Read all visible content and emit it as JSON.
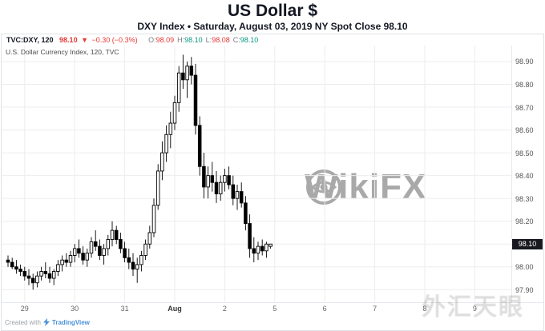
{
  "header": {
    "title": "US Dollar $",
    "subtitle": "DXY Index • Saturday, August 03, 2019 NY Spot Close 98.10"
  },
  "toolbar": {
    "symbol": "TVC:DXY, 120",
    "price": "98.10",
    "arrow": "▼",
    "change": "−0.30 (−0.3%)",
    "change_color": "#e53935",
    "ohlc": [
      {
        "label": "O:",
        "value": "98.09",
        "color": "#e53935"
      },
      {
        "label": "H:",
        "value": "98.10",
        "color": "#089981"
      },
      {
        "label": "L:",
        "value": "98.08",
        "color": "#e53935"
      },
      {
        "label": "C:",
        "value": "98.10",
        "color": "#089981"
      }
    ]
  },
  "legend": {
    "text": "U.S. Dollar Currency Index, 120, TVC"
  },
  "watermark": {
    "text": "WikiFX",
    "secondary": "外汇天眼"
  },
  "footer": {
    "created_with": "Created with",
    "brand": "TradingView"
  },
  "chart_data": {
    "type": "candlestick",
    "title": "U.S. Dollar Currency Index",
    "symbol": "TVC:DXY",
    "interval_minutes": 120,
    "last_price": 98.1,
    "ylim": [
      97.845,
      98.97
    ],
    "grid": true,
    "grid_color": "#ededf0",
    "axis_text_color": "#555555",
    "up_color": "#ffffff",
    "down_color": "#000000",
    "border_color": "#000000",
    "x0": 8,
    "step": 5.2,
    "y_ticks": [
      "98.90",
      "98.80",
      "98.70",
      "98.60",
      "98.50",
      "98.40",
      "98.30",
      "98.20",
      "98.10",
      "98.00",
      "97.90"
    ],
    "x_ticks": [
      {
        "label": "29",
        "bar": 4,
        "bold": false
      },
      {
        "label": "30",
        "bar": 16,
        "bold": false
      },
      {
        "label": "31",
        "bar": 28,
        "bold": false
      },
      {
        "label": "Aug",
        "bar": 40,
        "bold": true
      },
      {
        "label": "2",
        "bar": 52,
        "bold": false
      },
      {
        "label": "5",
        "bar": 64,
        "bold": false
      },
      {
        "label": "6",
        "bar": 76,
        "bold": false
      },
      {
        "label": "7",
        "bar": 88,
        "bold": false
      },
      {
        "label": "8",
        "bar": 100,
        "bold": false
      },
      {
        "label": "9",
        "bar": 112,
        "bold": false
      }
    ],
    "candles_format": [
      "open",
      "high",
      "low",
      "close"
    ],
    "candles": [
      [
        98.03,
        98.05,
        98.0,
        98.02
      ],
      [
        98.02,
        98.04,
        97.99,
        98.0
      ],
      [
        98.0,
        98.03,
        97.97,
        97.99
      ],
      [
        97.99,
        98.01,
        97.96,
        97.98
      ],
      [
        97.98,
        98.0,
        97.94,
        97.96
      ],
      [
        97.96,
        97.99,
        97.92,
        97.95
      ],
      [
        97.95,
        97.97,
        97.9,
        97.93
      ],
      [
        97.93,
        97.98,
        97.91,
        97.96
      ],
      [
        97.96,
        98.0,
        97.94,
        97.98
      ],
      [
        97.98,
        98.02,
        97.95,
        97.97
      ],
      [
        97.97,
        98.0,
        97.93,
        97.95
      ],
      [
        97.95,
        97.99,
        97.92,
        97.98
      ],
      [
        97.98,
        98.03,
        97.96,
        98.01
      ],
      [
        98.01,
        98.05,
        97.98,
        98.03
      ],
      [
        98.03,
        98.06,
        98.0,
        98.02
      ],
      [
        98.02,
        98.07,
        98.0,
        98.05
      ],
      [
        98.05,
        98.1,
        98.02,
        98.08
      ],
      [
        98.08,
        98.12,
        98.04,
        98.06
      ],
      [
        98.06,
        98.09,
        98.01,
        98.03
      ],
      [
        98.03,
        98.08,
        98.0,
        98.06
      ],
      [
        98.06,
        98.13,
        98.04,
        98.11
      ],
      [
        98.11,
        98.16,
        98.07,
        98.09
      ],
      [
        98.09,
        98.12,
        98.03,
        98.05
      ],
      [
        98.05,
        98.1,
        98.01,
        98.08
      ],
      [
        98.08,
        98.14,
        98.05,
        98.12
      ],
      [
        98.12,
        98.2,
        98.09,
        98.16
      ],
      [
        98.16,
        98.18,
        98.1,
        98.12
      ],
      [
        98.12,
        98.15,
        98.06,
        98.08
      ],
      [
        98.08,
        98.11,
        98.02,
        98.04
      ],
      [
        98.04,
        98.08,
        97.99,
        98.02
      ],
      [
        98.02,
        98.06,
        97.96,
        97.99
      ],
      [
        97.99,
        98.04,
        97.93,
        98.01
      ],
      [
        98.01,
        98.07,
        97.98,
        98.05
      ],
      [
        98.05,
        98.12,
        98.03,
        98.1
      ],
      [
        98.1,
        98.18,
        98.08,
        98.15
      ],
      [
        98.15,
        98.3,
        98.13,
        98.27
      ],
      [
        98.27,
        98.45,
        98.25,
        98.42
      ],
      [
        98.42,
        98.55,
        98.38,
        98.5
      ],
      [
        98.5,
        98.62,
        98.46,
        98.58
      ],
      [
        98.58,
        98.68,
        98.52,
        98.63
      ],
      [
        98.63,
        98.75,
        98.6,
        98.72
      ],
      [
        98.72,
        98.88,
        98.68,
        98.85
      ],
      [
        98.85,
        98.93,
        98.78,
        98.82
      ],
      [
        98.82,
        98.9,
        98.74,
        98.88
      ],
      [
        98.88,
        98.92,
        98.8,
        98.84
      ],
      [
        98.84,
        98.89,
        98.58,
        98.62
      ],
      [
        98.62,
        98.66,
        98.4,
        98.44
      ],
      [
        98.44,
        98.5,
        98.3,
        98.35
      ],
      [
        98.35,
        98.44,
        98.3,
        98.4
      ],
      [
        98.4,
        98.46,
        98.33,
        98.37
      ],
      [
        98.37,
        98.42,
        98.28,
        98.32
      ],
      [
        98.32,
        98.4,
        98.29,
        98.37
      ],
      [
        98.37,
        98.43,
        98.33,
        98.4
      ],
      [
        98.4,
        98.44,
        98.34,
        98.36
      ],
      [
        98.36,
        98.4,
        98.27,
        98.3
      ],
      [
        98.3,
        98.36,
        98.25,
        98.33
      ],
      [
        98.33,
        98.37,
        98.26,
        98.28
      ],
      [
        98.28,
        98.31,
        98.16,
        98.19
      ],
      [
        98.19,
        98.23,
        98.04,
        98.08
      ],
      [
        98.08,
        98.13,
        98.02,
        98.06
      ],
      [
        98.06,
        98.11,
        98.03,
        98.09
      ],
      [
        98.09,
        98.12,
        98.05,
        98.07
      ],
      [
        98.07,
        98.11,
        98.04,
        98.1
      ],
      [
        98.09,
        98.1,
        98.08,
        98.1
      ]
    ]
  }
}
